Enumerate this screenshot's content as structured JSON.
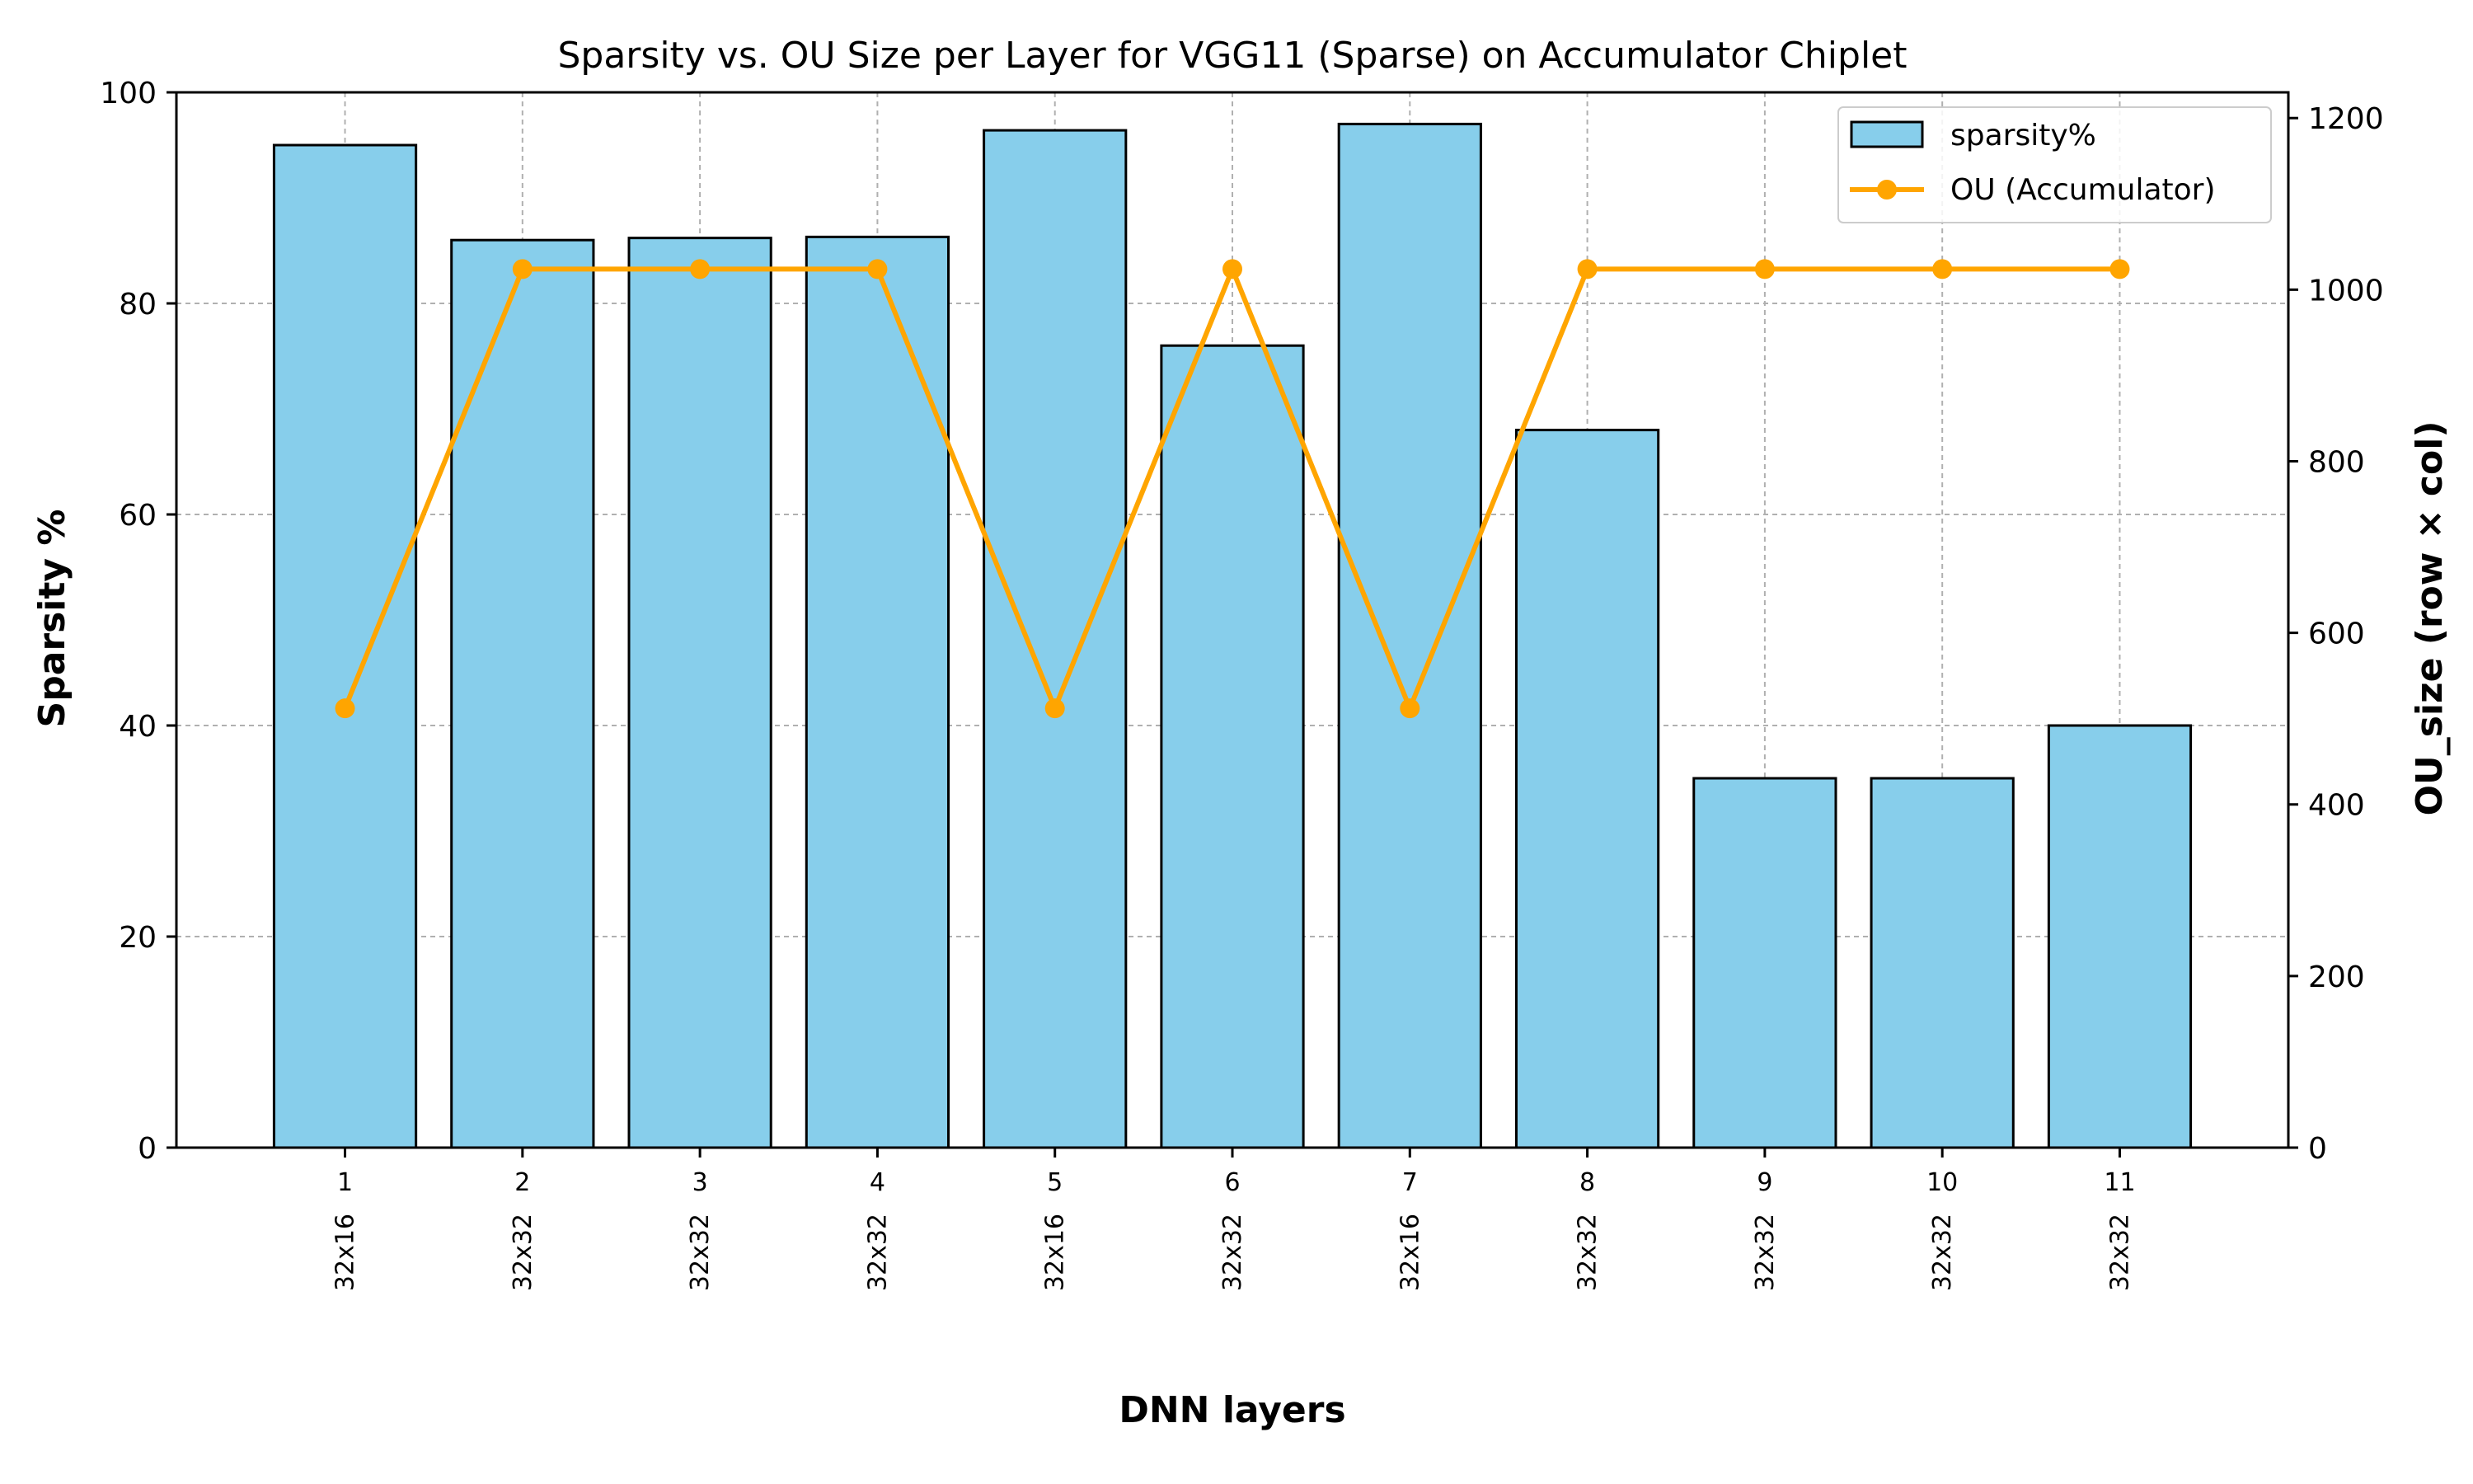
{
  "chart_data": {
    "type": "bar",
    "title": "Sparsity vs. OU Size per Layer for VGG11 (Sparse) on Accumulator Chiplet",
    "xlabel": "DNN layers",
    "ylabel": "Sparsity %",
    "y2label": "OU_size (row × col)",
    "categories": [
      "1",
      "2",
      "3",
      "4",
      "5",
      "6",
      "7",
      "8",
      "9",
      "10",
      "11"
    ],
    "ou_labels": [
      "32x16",
      "32x32",
      "32x32",
      "32x32",
      "32x16",
      "32x32",
      "32x16",
      "32x32",
      "32x32",
      "32x32",
      "32x32"
    ],
    "ylim": [
      0,
      100
    ],
    "y2lim": [
      0,
      1230
    ],
    "yticks": [
      0,
      20,
      40,
      60,
      80,
      100
    ],
    "y2ticks": [
      0,
      200,
      400,
      600,
      800,
      1000,
      1200
    ],
    "grid": true,
    "legend_position": "top-right",
    "series": [
      {
        "name": "sparsity%",
        "kind": "bar",
        "axis": "left",
        "color": "#87ceeb",
        "values": [
          95,
          86,
          86.2,
          86.3,
          96.4,
          76,
          97,
          68,
          35,
          35,
          40
        ]
      },
      {
        "name": "OU (Accumulator)",
        "kind": "line",
        "axis": "right",
        "color": "#ffa500",
        "values": [
          512,
          1024,
          1024,
          1024,
          512,
          1024,
          512,
          1024,
          1024,
          1024,
          1024
        ]
      }
    ]
  }
}
